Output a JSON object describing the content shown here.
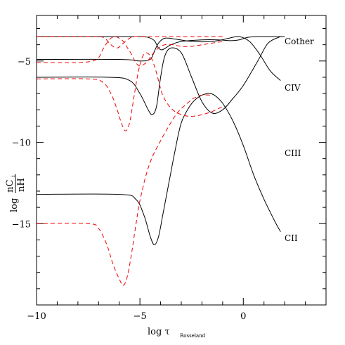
{
  "chart_data": {
    "type": "line",
    "xlabel": "log τ",
    "xlabel_sub": "Rosseland",
    "ylabel": "log",
    "ylabel_num": "nC",
    "ylabel_num_sub": "i",
    "ylabel_den": "nH",
    "xlim": [
      -10,
      4
    ],
    "ylim": [
      -20,
      -2.2
    ],
    "xticks": [
      -10,
      -5,
      0
    ],
    "xtick_labels": [
      "−10",
      "−5",
      "0"
    ],
    "yticks": [
      -15,
      -10,
      -5
    ],
    "ytick_labels": [
      "−15",
      "−10",
      "−5"
    ],
    "grid": false,
    "legend": "none",
    "colors": {
      "black": "#000000",
      "red": "#ee0000"
    },
    "series": [
      {
        "name": "Cother",
        "style": "solid",
        "color": "black",
        "x": [
          -10,
          -6,
          -5,
          -4.6,
          -4.3,
          -4.1,
          -3.9,
          -3.5,
          -3,
          -2,
          -1.2,
          -0.6,
          -0.2,
          0.2,
          0.6,
          1.0,
          1.4,
          2
        ],
        "y": [
          -3.5,
          -3.5,
          -3.5,
          -3.55,
          -3.75,
          -4.2,
          -4.3,
          -4.0,
          -3.8,
          -3.7,
          -3.7,
          -3.75,
          -3.7,
          -3.55,
          -3.5,
          -3.5,
          -3.5,
          -3.5
        ]
      },
      {
        "name": "CIV",
        "style": "solid",
        "color": "black",
        "x": [
          -10,
          -6,
          -5,
          -4.5,
          -4.3,
          -4.1,
          -3.8,
          -3.3,
          -2.5,
          -1.5,
          -0.7,
          -0.2,
          0.3,
          0.8,
          1.3,
          1.8
        ],
        "y": [
          -4.9,
          -4.9,
          -5.0,
          -4.9,
          -4.4,
          -3.9,
          -3.6,
          -3.65,
          -3.8,
          -3.8,
          -3.6,
          -3.5,
          -3.8,
          -4.6,
          -5.6,
          -6.2
        ]
      },
      {
        "name": "CIII",
        "style": "solid",
        "color": "black",
        "x": [
          -10,
          -6.5,
          -5.5,
          -5,
          -4.6,
          -4.4,
          -4.2,
          -4.0,
          -3.8,
          -3.5,
          -3,
          -2.5,
          -2,
          -1.5,
          -1,
          -0.5,
          0,
          0.7,
          1.2,
          1.8
        ],
        "y": [
          -6.0,
          -6.0,
          -6.2,
          -7.0,
          -8.0,
          -8.3,
          -7.8,
          -6.0,
          -4.7,
          -4.2,
          -4.5,
          -6.0,
          -7.5,
          -8.2,
          -8.0,
          -7.3,
          -6.5,
          -5.0,
          -3.9,
          -3.5
        ]
      },
      {
        "name": "CII",
        "style": "solid",
        "color": "black",
        "x": [
          -10,
          -6,
          -5.2,
          -4.8,
          -4.5,
          -4.3,
          -4.1,
          -3.9,
          -3.6,
          -3.3,
          -3,
          -2.6,
          -2.3,
          -2,
          -1.7,
          -1.4,
          -1,
          -0.5,
          0,
          0.5,
          1,
          1.5,
          1.8
        ],
        "y": [
          -13.2,
          -13.2,
          -13.5,
          -14.5,
          -15.8,
          -16.3,
          -15.8,
          -14.5,
          -12.5,
          -10.5,
          -8.8,
          -7.8,
          -7.35,
          -7.1,
          -7.0,
          -7.1,
          -7.6,
          -8.7,
          -10.2,
          -12.0,
          -13.5,
          -14.8,
          -15.5
        ]
      },
      {
        "style": "dashed",
        "color": "red",
        "x": [
          -10,
          -8,
          -7,
          -6.7,
          -6.4,
          -6.1,
          -5.8,
          -5.5,
          -5.3,
          -5,
          -4.5,
          -4,
          -3,
          -2,
          -1
        ],
        "y": [
          -3.5,
          -3.5,
          -3.5,
          -3.6,
          -4.0,
          -4.2,
          -3.9,
          -3.6,
          -3.5,
          -3.5,
          -3.5,
          -3.5,
          -3.5,
          -3.5,
          -3.5
        ]
      },
      {
        "style": "dashed",
        "color": "red",
        "x": [
          -10,
          -8,
          -7.3,
          -7,
          -6.8,
          -6.6,
          -6.4,
          -6.2,
          -6,
          -5.8,
          -5.6,
          -5.4,
          -5.2,
          -5,
          -4.7,
          -4.4,
          -4.1,
          -3.8,
          -3.4,
          -3,
          -2.5,
          -2,
          -1.5,
          -1
        ],
        "y": [
          -5.1,
          -5.1,
          -5.0,
          -4.8,
          -4.3,
          -3.9,
          -3.6,
          -3.5,
          -3.6,
          -3.8,
          -4.2,
          -4.6,
          -5.1,
          -5.3,
          -5.1,
          -4.6,
          -4.2,
          -4.0,
          -4.0,
          -4.1,
          -4.1,
          -4.0,
          -3.9,
          -3.8
        ]
      },
      {
        "style": "dashed",
        "color": "red",
        "x": [
          -10,
          -7.5,
          -6.8,
          -6.4,
          -6.1,
          -5.9,
          -5.7,
          -5.5,
          -5.3,
          -5.1,
          -4.9,
          -4.7,
          -4.5,
          -4.3,
          -4.1,
          -3.9,
          -3.5,
          -3,
          -2.5,
          -2,
          -1.5,
          -1
        ],
        "y": [
          -6.1,
          -6.1,
          -6.3,
          -7.0,
          -8.0,
          -8.8,
          -9.3,
          -8.8,
          -7.3,
          -5.8,
          -4.8,
          -4.5,
          -4.7,
          -5.3,
          -6.2,
          -7.1,
          -7.9,
          -8.3,
          -8.4,
          -8.3,
          -8.1,
          -7.8
        ]
      },
      {
        "style": "dashed",
        "color": "red",
        "x": [
          -10,
          -7.5,
          -7,
          -6.6,
          -6.3,
          -6,
          -5.8,
          -5.6,
          -5.4,
          -5.2,
          -5,
          -4.7,
          -4.4,
          -4,
          -3.6,
          -3.2,
          -2.8,
          -2.4,
          -2,
          -1.6
        ],
        "y": [
          -15.0,
          -15.0,
          -15.3,
          -16.3,
          -17.5,
          -18.4,
          -18.8,
          -18.2,
          -16.8,
          -15.1,
          -13.6,
          -12.0,
          -10.9,
          -9.9,
          -9.0,
          -8.2,
          -7.7,
          -7.3,
          -7.1,
          -7.1
        ]
      }
    ]
  }
}
